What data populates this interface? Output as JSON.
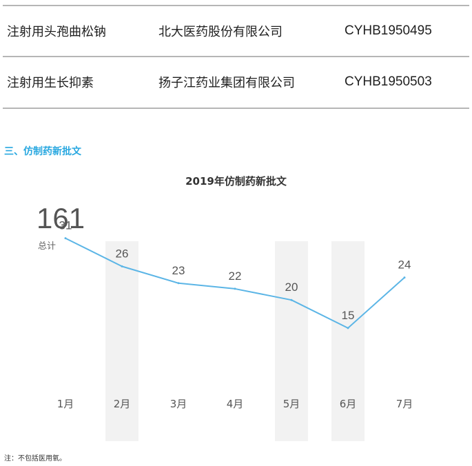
{
  "table": {
    "rows": [
      {
        "drug": "注射用头孢曲松钠",
        "company": "北大医药股份有限公司",
        "code": "CYHB1950495"
      },
      {
        "drug": "注射用生长抑素",
        "company": "扬子江药业集团有限公司",
        "code": "CYHB1950503"
      }
    ]
  },
  "section_title": "三、仿制药新批文",
  "summary": {
    "total": "161",
    "label": "总计"
  },
  "note": "注：不包括医用氧。",
  "colors": {
    "line": "#5bb5e6",
    "section_title": "#29a8e0",
    "bands": "#f2f2f2"
  },
  "chart_data": {
    "type": "line",
    "title": "2019年仿制药新批文",
    "categories": [
      "1月",
      "2月",
      "3月",
      "4月",
      "5月",
      "6月",
      "7月"
    ],
    "series": [
      {
        "values": [
          31,
          26,
          23,
          22,
          20,
          15,
          24
        ]
      }
    ],
    "ylim": [
      0,
      35
    ],
    "grid": false,
    "legend": "none",
    "data_labels": true
  }
}
